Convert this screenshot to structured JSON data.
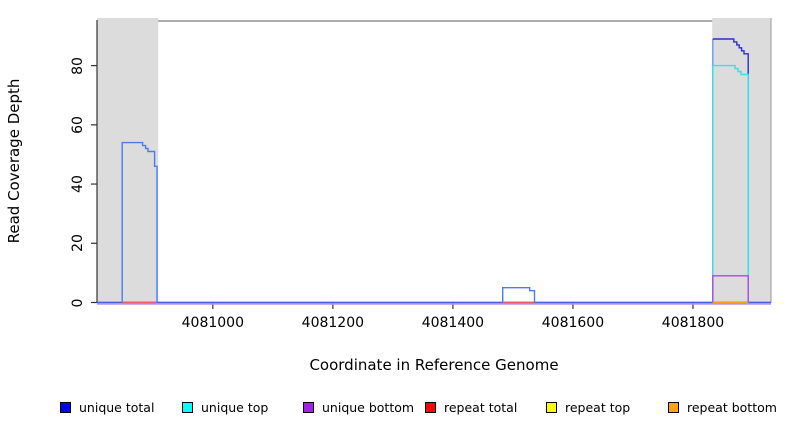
{
  "chart_data": {
    "type": "step-line",
    "xlabel": "Coordinate in Reference Genome",
    "ylabel": "Read Coverage Depth",
    "xlim": [
      4080807,
      4081930
    ],
    "ylim": [
      0,
      95.4
    ],
    "x_ticks": [
      4081000,
      4081200,
      4081400,
      4081600,
      4081800
    ],
    "y_ticks": [
      0,
      20,
      40,
      60,
      80
    ],
    "grid": false,
    "legend_position": "bottom",
    "shaded_regions": [
      {
        "name": "repeat-region-left",
        "x1": 4080807,
        "x2": 4080909,
        "color": "#dcdcdc"
      },
      {
        "name": "repeat-region-right",
        "x1": 4081832,
        "x2": 4081930,
        "color": "#dcdcdc"
      }
    ],
    "series": [
      {
        "name": "unique total",
        "color": "#2d2dd2",
        "segments": [
          {
            "points": [
              [
                4080807,
                0
              ],
              [
                4081930,
                0
              ]
            ],
            "color": "#4a5ce8"
          },
          {
            "points": [
              [
                4080849,
                0
              ],
              [
                4080849,
                54
              ],
              [
                4080883,
                54
              ],
              [
                4080883,
                53
              ],
              [
                4080888,
                53
              ],
              [
                4080888,
                52
              ],
              [
                4080892,
                52
              ],
              [
                4080892,
                51
              ],
              [
                4080903,
                51
              ],
              [
                4080903,
                46
              ],
              [
                4080907,
                46
              ],
              [
                4080907,
                0
              ]
            ],
            "color": "#4a7cf0"
          },
          {
            "points": [
              [
                4081483,
                0
              ],
              [
                4081483,
                5
              ],
              [
                4081528,
                5
              ],
              [
                4081528,
                4
              ],
              [
                4081536,
                4
              ],
              [
                4081536,
                0
              ]
            ],
            "color": "#4a7cf0"
          },
          {
            "points": [
              [
                4081833,
                0
              ],
              [
                4081833,
                89
              ]
            ],
            "color": "#6b9af8"
          },
          {
            "points": [
              [
                4081833,
                89
              ],
              [
                4081868,
                89
              ],
              [
                4081868,
                88
              ],
              [
                4081873,
                88
              ],
              [
                4081873,
                87
              ],
              [
                4081877,
                87
              ],
              [
                4081877,
                86
              ],
              [
                4081881,
                86
              ],
              [
                4081881,
                85
              ],
              [
                4081885,
                85
              ],
              [
                4081885,
                84
              ],
              [
                4081892,
                84
              ],
              [
                4081892,
                75
              ]
            ],
            "color": "#2d2dd2"
          },
          {
            "points": [
              [
                4081892,
                75
              ],
              [
                4081892,
                0
              ]
            ],
            "color": "#6b9af8"
          }
        ]
      },
      {
        "name": "unique top",
        "color": "#3fdde6",
        "segments": [
          {
            "points": [
              [
                4081833,
                0
              ],
              [
                4081833,
                80
              ],
              [
                4081870,
                80
              ],
              [
                4081870,
                79
              ],
              [
                4081875,
                79
              ],
              [
                4081875,
                78
              ],
              [
                4081880,
                78
              ],
              [
                4081880,
                77
              ],
              [
                4081892,
                77
              ],
              [
                4081892,
                0
              ]
            ],
            "color": "#3fdde6"
          }
        ]
      },
      {
        "name": "unique bottom",
        "color": "#a04fe0",
        "segments": [
          {
            "points": [
              [
                4080807,
                0
              ],
              [
                4081930,
                0
              ]
            ],
            "color": "#b592ee",
            "dy": 1.5
          },
          {
            "points": [
              [
                4081833,
                0
              ],
              [
                4081833,
                9
              ],
              [
                4081892,
                9
              ],
              [
                4081892,
                0
              ]
            ],
            "color": "#a04fe0"
          }
        ]
      },
      {
        "name": "repeat total",
        "color": "#f25b66",
        "segments": [
          {
            "points": [
              [
                4080849,
                0
              ],
              [
                4080907,
                0
              ]
            ],
            "color": "#f25b66"
          },
          {
            "points": [
              [
                4081483,
                0
              ],
              [
                4081536,
                0
              ]
            ],
            "color": "#f25b66"
          }
        ]
      },
      {
        "name": "repeat top",
        "color": "#ffff00",
        "segments": []
      },
      {
        "name": "repeat bottom",
        "color": "#ff9e1b",
        "segments": [
          {
            "points": [
              [
                4081833,
                0
              ],
              [
                4081892,
                0
              ]
            ],
            "color": "#ff9e1b"
          }
        ]
      }
    ]
  },
  "legend": {
    "items": [
      {
        "label": "unique total",
        "color": "#0000ee"
      },
      {
        "label": "unique top",
        "color": "#00ffff"
      },
      {
        "label": "unique bottom",
        "color": "#a020f0"
      },
      {
        "label": "repeat total",
        "color": "#ff0000"
      },
      {
        "label": "repeat top",
        "color": "#ffff00"
      },
      {
        "label": "repeat bottom",
        "color": "#ffa500"
      }
    ]
  },
  "colors": {
    "band": "#dcdcdc",
    "axis": "#333333",
    "box_top": "#7a7a7a",
    "box_right": "#9a9a9a",
    "text": "#000000"
  }
}
